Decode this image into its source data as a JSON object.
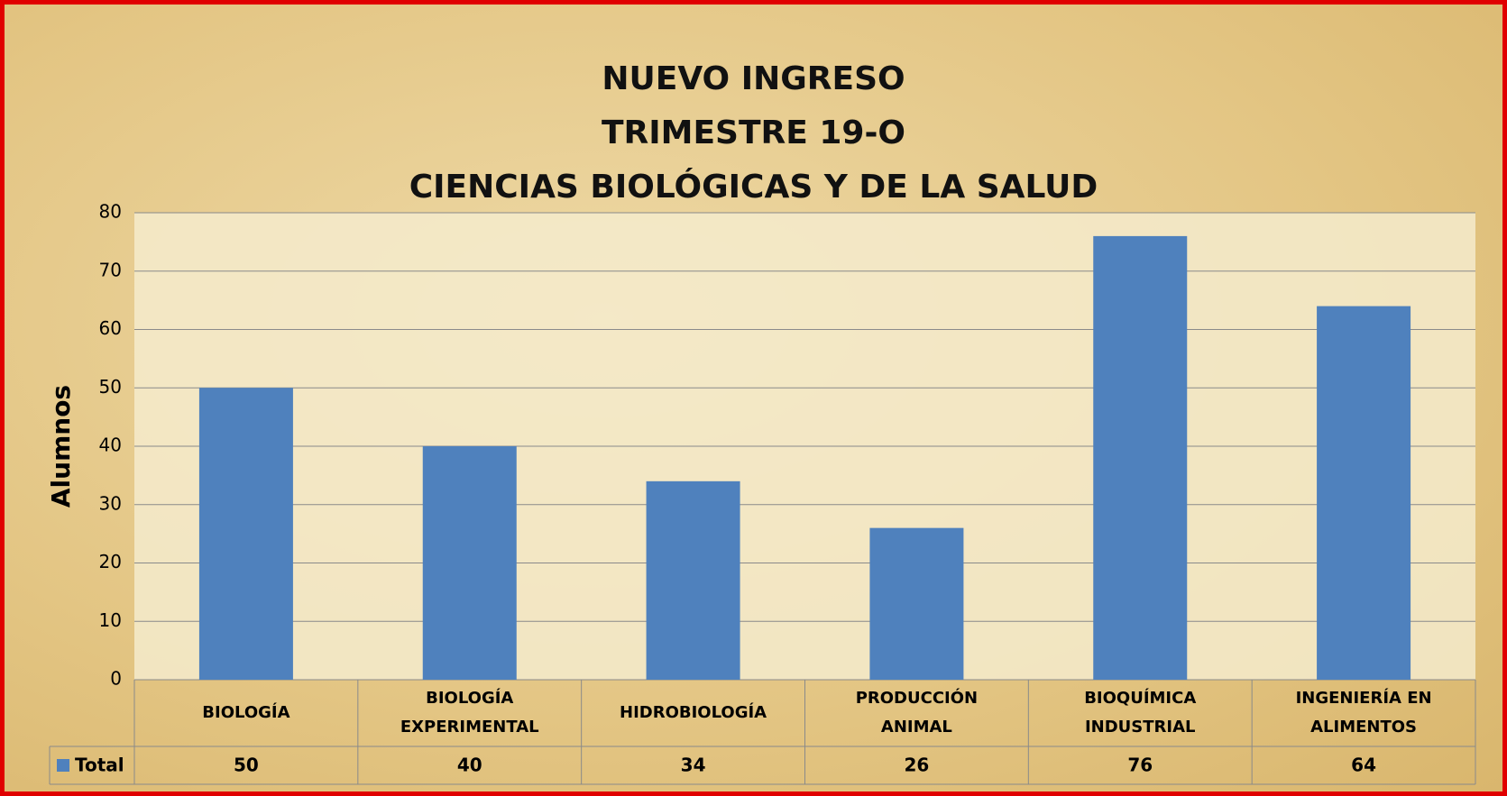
{
  "chart_data": {
    "type": "bar",
    "title": "NUEVO INGRESO\nTRIMESTRE 19-O\nCIENCIAS BIOLÓGICAS Y DE LA SALUD",
    "y_label": "Alumnos",
    "categories": [
      "BIOLOGÍA",
      "BIOLOGÍA\nEXPERIMENTAL",
      "HIDROBIOLOGÍA",
      "PRODUCCIÓN\nANIMAL",
      "BIOQUÍMICA\nINDUSTRIAL",
      "INGENIERÍA EN\nALIMENTOS"
    ],
    "series": [
      {
        "name": "Total",
        "color": "#4f81bd",
        "values": [
          50,
          40,
          34,
          26,
          76,
          64
        ]
      }
    ],
    "ylim": [
      0,
      80
    ],
    "yticks": [
      0,
      10,
      20,
      30,
      40,
      50,
      60,
      70,
      80
    ],
    "grid": true
  }
}
